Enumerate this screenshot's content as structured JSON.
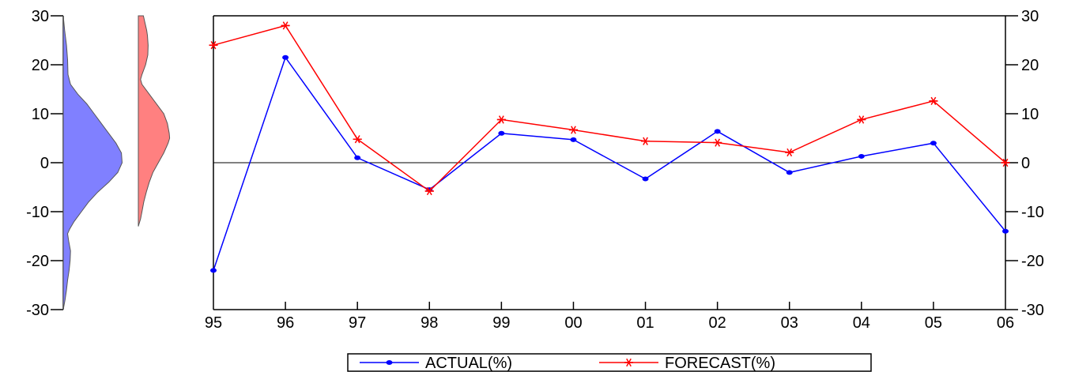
{
  "chart_data": {
    "type": "line",
    "x": [
      "95",
      "96",
      "97",
      "98",
      "99",
      "00",
      "01",
      "02",
      "03",
      "04",
      "05",
      "06"
    ],
    "series": [
      {
        "name": "ACTUAL(%)",
        "color": "#0000ff",
        "marker": "dot",
        "values": [
          -22.0,
          21.5,
          1.0,
          -5.5,
          6.0,
          4.7,
          -3.3,
          6.4,
          -2.0,
          1.3,
          4.0,
          -14.0
        ]
      },
      {
        "name": "FORECAST(%)",
        "color": "#ff0000",
        "marker": "asterisk",
        "values": [
          24.0,
          28.0,
          4.8,
          -5.8,
          8.8,
          6.7,
          4.4,
          4.1,
          2.1,
          8.8,
          12.6,
          0.0
        ]
      }
    ],
    "ylim": [
      -30,
      30
    ],
    "yticks": [
      30,
      20,
      10,
      0,
      -10,
      -20,
      -30
    ],
    "ytick_labels": [
      "30",
      "20",
      "10",
      "0",
      "-10",
      "-20",
      "-30"
    ],
    "zero_line": true,
    "grid": false,
    "legend_position": "bottom-center",
    "title": "",
    "xlabel": "",
    "ylabel": "",
    "distributions": [
      {
        "series": "ACTUAL(%)",
        "fill": "#8080ff",
        "profile": [
          [
            30,
            0.0
          ],
          [
            27,
            0.04
          ],
          [
            24,
            0.09
          ],
          [
            21,
            0.12
          ],
          [
            18,
            0.13
          ],
          [
            16,
            0.2
          ],
          [
            14,
            0.4
          ],
          [
            12,
            0.65
          ],
          [
            10,
            0.85
          ],
          [
            8,
            1.05
          ],
          [
            6,
            1.25
          ],
          [
            4,
            1.45
          ],
          [
            2,
            1.6
          ],
          [
            0,
            1.62
          ],
          [
            -2,
            1.5
          ],
          [
            -4,
            1.25
          ],
          [
            -6,
            0.95
          ],
          [
            -8,
            0.7
          ],
          [
            -10,
            0.5
          ],
          [
            -12,
            0.3
          ],
          [
            -13.5,
            0.18
          ],
          [
            -14.5,
            0.12
          ],
          [
            -16,
            0.15
          ],
          [
            -18,
            0.2
          ],
          [
            -20,
            0.19
          ],
          [
            -22,
            0.16
          ],
          [
            -24,
            0.12
          ],
          [
            -26,
            0.09
          ],
          [
            -28,
            0.05
          ],
          [
            -30,
            0.0
          ]
        ]
      },
      {
        "series": "FORECAST(%)",
        "fill": "#ff8080",
        "profile": [
          [
            30,
            0.14
          ],
          [
            29,
            0.17
          ],
          [
            28,
            0.2
          ],
          [
            27,
            0.23
          ],
          [
            26,
            0.25
          ],
          [
            24,
            0.27
          ],
          [
            22,
            0.26
          ],
          [
            20,
            0.2
          ],
          [
            18,
            0.1
          ],
          [
            17,
            0.06
          ],
          [
            16,
            0.1
          ],
          [
            14,
            0.3
          ],
          [
            12,
            0.5
          ],
          [
            10,
            0.7
          ],
          [
            8,
            0.8
          ],
          [
            6,
            0.85
          ],
          [
            5,
            0.86
          ],
          [
            4,
            0.82
          ],
          [
            2,
            0.7
          ],
          [
            0,
            0.55
          ],
          [
            -2,
            0.4
          ],
          [
            -4,
            0.3
          ],
          [
            -6,
            0.22
          ],
          [
            -8,
            0.15
          ],
          [
            -10,
            0.1
          ],
          [
            -11.5,
            0.06
          ],
          [
            -12.5,
            0.02
          ],
          [
            -13,
            0.0
          ]
        ]
      }
    ]
  }
}
